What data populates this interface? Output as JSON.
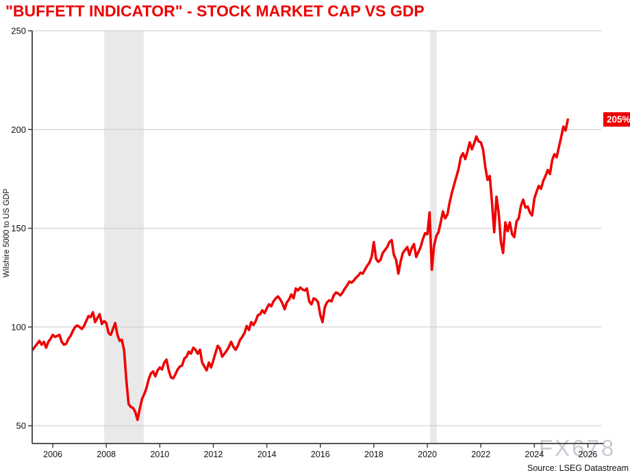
{
  "title": {
    "text": "\"BUFFETT INDICATOR\" - STOCK MARKET CAP VS GDP",
    "color": "#ee0000"
  },
  "watermark": {
    "text": "FX678"
  },
  "source": {
    "text": "Source: LSEG Datastream"
  },
  "end_label": {
    "text": "205%",
    "value": 205,
    "bg": "#ee0000",
    "fg": "#ffffff"
  },
  "chart_data": {
    "type": "line",
    "title": "\"BUFFETT INDICATOR\" - STOCK MARKET CAP VS GDP",
    "xlabel": "",
    "ylabel": "Wilshire 5000 to US GDP",
    "x_ticks": [
      2006,
      2008,
      2010,
      2012,
      2014,
      2016,
      2018,
      2020,
      2022,
      2024,
      2026
    ],
    "y_ticks": [
      50,
      100,
      150,
      200,
      250
    ],
    "x_range": [
      2005.23,
      2026.5
    ],
    "y_range": [
      41,
      250
    ],
    "grid": "horizontal-only",
    "legend": "none",
    "frequency": "monthly",
    "recession_bands": [
      [
        2007.92,
        2009.4
      ],
      [
        2020.1,
        2020.35
      ]
    ],
    "colors": {
      "grid": "#c9c9c9",
      "band": "#e9e9e9",
      "axis": "#3c3c3c",
      "tick_text": "#111111"
    },
    "series": [
      {
        "name": "Wilshire 5000 to US GDP",
        "color": "#ee0000",
        "x_start": 2005.25,
        "x_end": 2025.25,
        "x_step_years": 0.0833333,
        "values": [
          88.5,
          90,
          91.5,
          93,
          91,
          92.5,
          89.5,
          92.5,
          94,
          96,
          95,
          95.5,
          96,
          92.5,
          91,
          91.5,
          94,
          95.5,
          98,
          100,
          100.8,
          100,
          99,
          100.5,
          103,
          105.5,
          105,
          107.5,
          102.5,
          104.5,
          106.5,
          101.5,
          103,
          102,
          97,
          96,
          99,
          102,
          96,
          93,
          93.5,
          88,
          73,
          61,
          59.5,
          59,
          57,
          53,
          58.5,
          63.5,
          66,
          69,
          73.5,
          76.5,
          77.5,
          75,
          78,
          79.5,
          78.5,
          82,
          83.5,
          78,
          74.5,
          74,
          76,
          78.5,
          80,
          80.5,
          84,
          85,
          87.5,
          86.5,
          89.5,
          88.5,
          86.5,
          88.5,
          82,
          80,
          78,
          82,
          79.5,
          83,
          87,
          90.5,
          89,
          85,
          86.5,
          88,
          90,
          92.5,
          90,
          88.5,
          90.5,
          93.5,
          95,
          97,
          100.5,
          98.5,
          102.5,
          101,
          103,
          106,
          106.5,
          108.5,
          107,
          109.5,
          111.5,
          110.5,
          113,
          114.5,
          115.5,
          114,
          112,
          109,
          112.5,
          114,
          116.5,
          114.5,
          119.5,
          118.5,
          120,
          119,
          118.5,
          119.5,
          113,
          111.5,
          114.5,
          114,
          112.5,
          106,
          102.5,
          110,
          112.5,
          113.5,
          113,
          116,
          117.5,
          117,
          116,
          117.5,
          119.5,
          121,
          123,
          122.5,
          123.5,
          125,
          126,
          127.5,
          127,
          129,
          131,
          132.5,
          135.5,
          143,
          134.5,
          133,
          134,
          137.5,
          139,
          140.5,
          143,
          144,
          136.5,
          134,
          127,
          133,
          137.5,
          139,
          140.5,
          136.5,
          140,
          142,
          135.5,
          138,
          140.5,
          144.5,
          147.5,
          147,
          158,
          129,
          141,
          146,
          148,
          153,
          158.5,
          155,
          157,
          163,
          168,
          172,
          176,
          180,
          186,
          188,
          185,
          189,
          193.5,
          190,
          193,
          196.5,
          194,
          193.5,
          190,
          181,
          174.5,
          176.5,
          163,
          148,
          166,
          158,
          143,
          137.5,
          153,
          148.5,
          153,
          147,
          145.5,
          153.5,
          155,
          161.5,
          164.5,
          160.5,
          161,
          158,
          156.5,
          165,
          168.5,
          171.5,
          170,
          174,
          176.5,
          179.5,
          177.5,
          184.5,
          187.5,
          186,
          191,
          196,
          201.5,
          199.5,
          205
        ]
      }
    ]
  }
}
